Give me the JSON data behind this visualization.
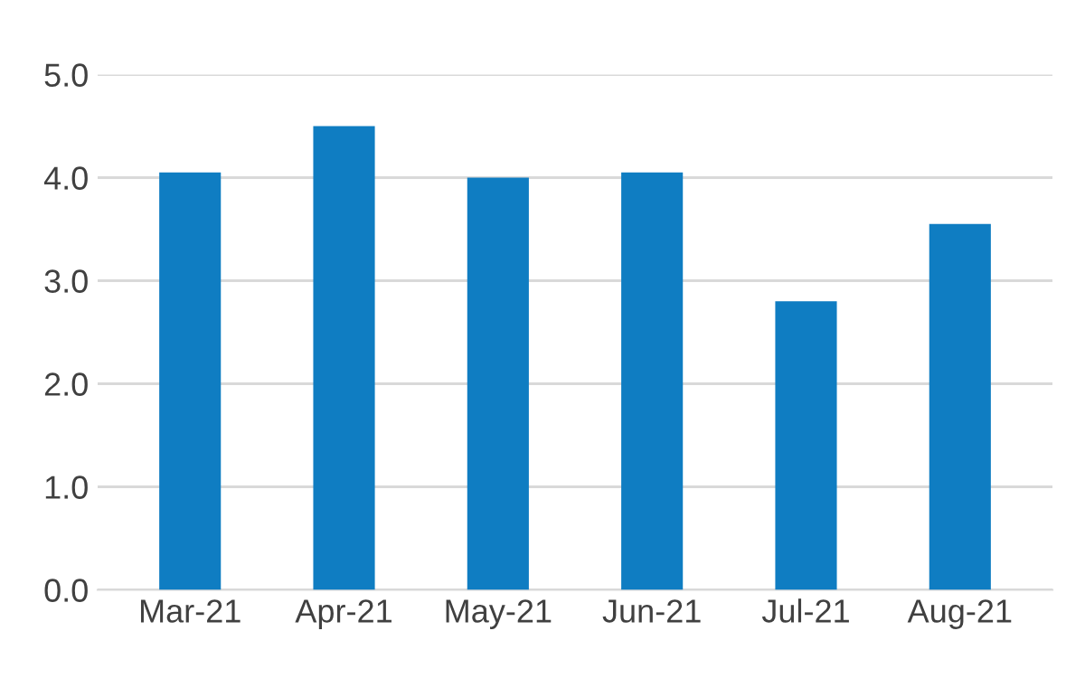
{
  "chart_data": {
    "type": "bar",
    "categories": [
      "Mar-21",
      "Apr-21",
      "May-21",
      "Jun-21",
      "Jul-21",
      "Aug-21"
    ],
    "values": [
      4.05,
      4.5,
      4.0,
      4.05,
      2.8,
      3.55
    ],
    "color": "#0f7dc2",
    "ylim": [
      0,
      5
    ],
    "yticks": [
      {
        "value": 0,
        "label": "0.0"
      },
      {
        "value": 1,
        "label": "1.0"
      },
      {
        "value": 2,
        "label": "2.0"
      },
      {
        "value": 3,
        "label": "3.0"
      },
      {
        "value": 4,
        "label": "4.0"
      },
      {
        "value": 5,
        "label": "5.0"
      }
    ],
    "grid": "y"
  }
}
